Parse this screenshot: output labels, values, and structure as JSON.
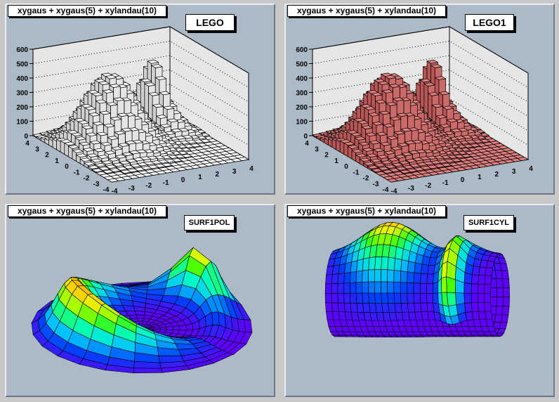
{
  "chart_data": [
    {
      "type": "lego",
      "title": "xygaus + xygaus(5) + xylandau(10)",
      "option": "LEGO",
      "bar_color": "#ffffff",
      "side_colors": [
        "#e4e4e4",
        "#cfcfcf"
      ],
      "zlim": [
        0,
        600
      ],
      "zticks": [
        "0",
        "100",
        "200",
        "300",
        "400",
        "500",
        "600"
      ],
      "xlim": [
        -4,
        4
      ],
      "xticks": [
        "-4",
        "-3",
        "-2",
        "-1",
        "0",
        "1",
        "2",
        "3",
        "4"
      ],
      "ylim": [
        -4,
        4
      ],
      "yticks": [
        "-4",
        "-3",
        "-2",
        "-1",
        "0",
        "1",
        "2",
        "3",
        "4"
      ],
      "bins": 20
    },
    {
      "type": "lego",
      "title": "xygaus + xygaus(5) + xylandau(10)",
      "option": "LEGO1",
      "bar_color": "#e08080",
      "side_colors": [
        "#cc6a6a",
        "#b85656"
      ],
      "zlim": [
        0,
        600
      ],
      "zticks": [
        "0",
        "100",
        "200",
        "300",
        "400",
        "500",
        "600"
      ],
      "xlim": [
        -4,
        4
      ],
      "xticks": [
        "-4",
        "-3",
        "-2",
        "-1",
        "0",
        "1",
        "2",
        "3",
        "4"
      ],
      "ylim": [
        -4,
        4
      ],
      "yticks": [
        "-4",
        "-3",
        "-2",
        "-1",
        "0",
        "1",
        "2",
        "3",
        "4"
      ],
      "bins": 20
    },
    {
      "type": "surface-polar",
      "title": "xygaus + xygaus(5) + xylandau(10)",
      "option": "SURF1POL",
      "xlim": [
        -4,
        4
      ],
      "ylim": [
        -4,
        4
      ]
    },
    {
      "type": "surface-cylindrical",
      "title": "xygaus + xygaus(5) + xylandau(10)",
      "option": "SURF1CYL",
      "xlim": [
        -4,
        4
      ],
      "ylim": [
        -4,
        4
      ]
    }
  ],
  "palette": [
    "#6000ff",
    "#0040ff",
    "#00c0ff",
    "#00ffc0",
    "#40ff00",
    "#e0ff00",
    "#ffc000",
    "#ff2000"
  ]
}
